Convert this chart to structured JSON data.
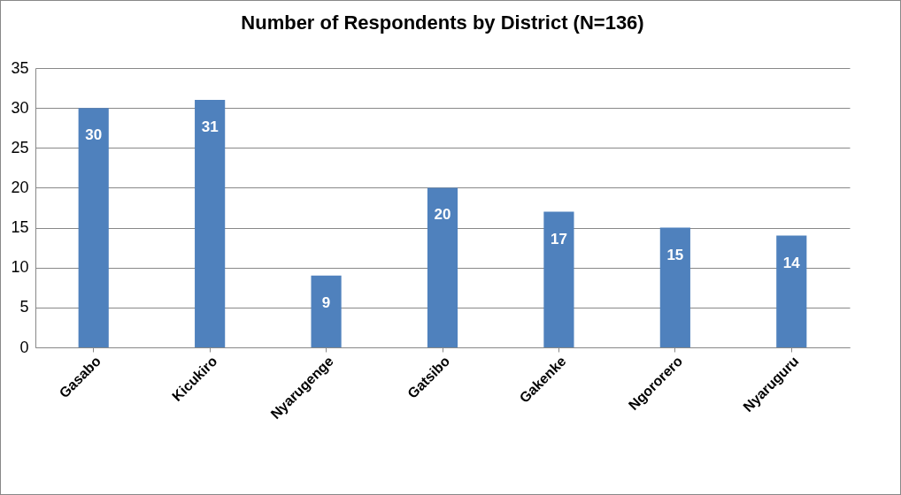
{
  "chart_data": {
    "type": "bar",
    "title": "Number of Respondents by District (N=136)",
    "categories": [
      "Gasabo",
      "Kicukiro",
      "Nyarugenge",
      "Gatsibo",
      "Gakenke",
      "Ngororero",
      "Nyaruguru"
    ],
    "values": [
      30,
      31,
      9,
      20,
      17,
      15,
      14
    ],
    "color": "#4f81bd",
    "ylim": [
      0,
      35
    ],
    "yticks": [
      0,
      5,
      10,
      15,
      20,
      25,
      30,
      35
    ],
    "grid": "y",
    "data_labels": true
  }
}
